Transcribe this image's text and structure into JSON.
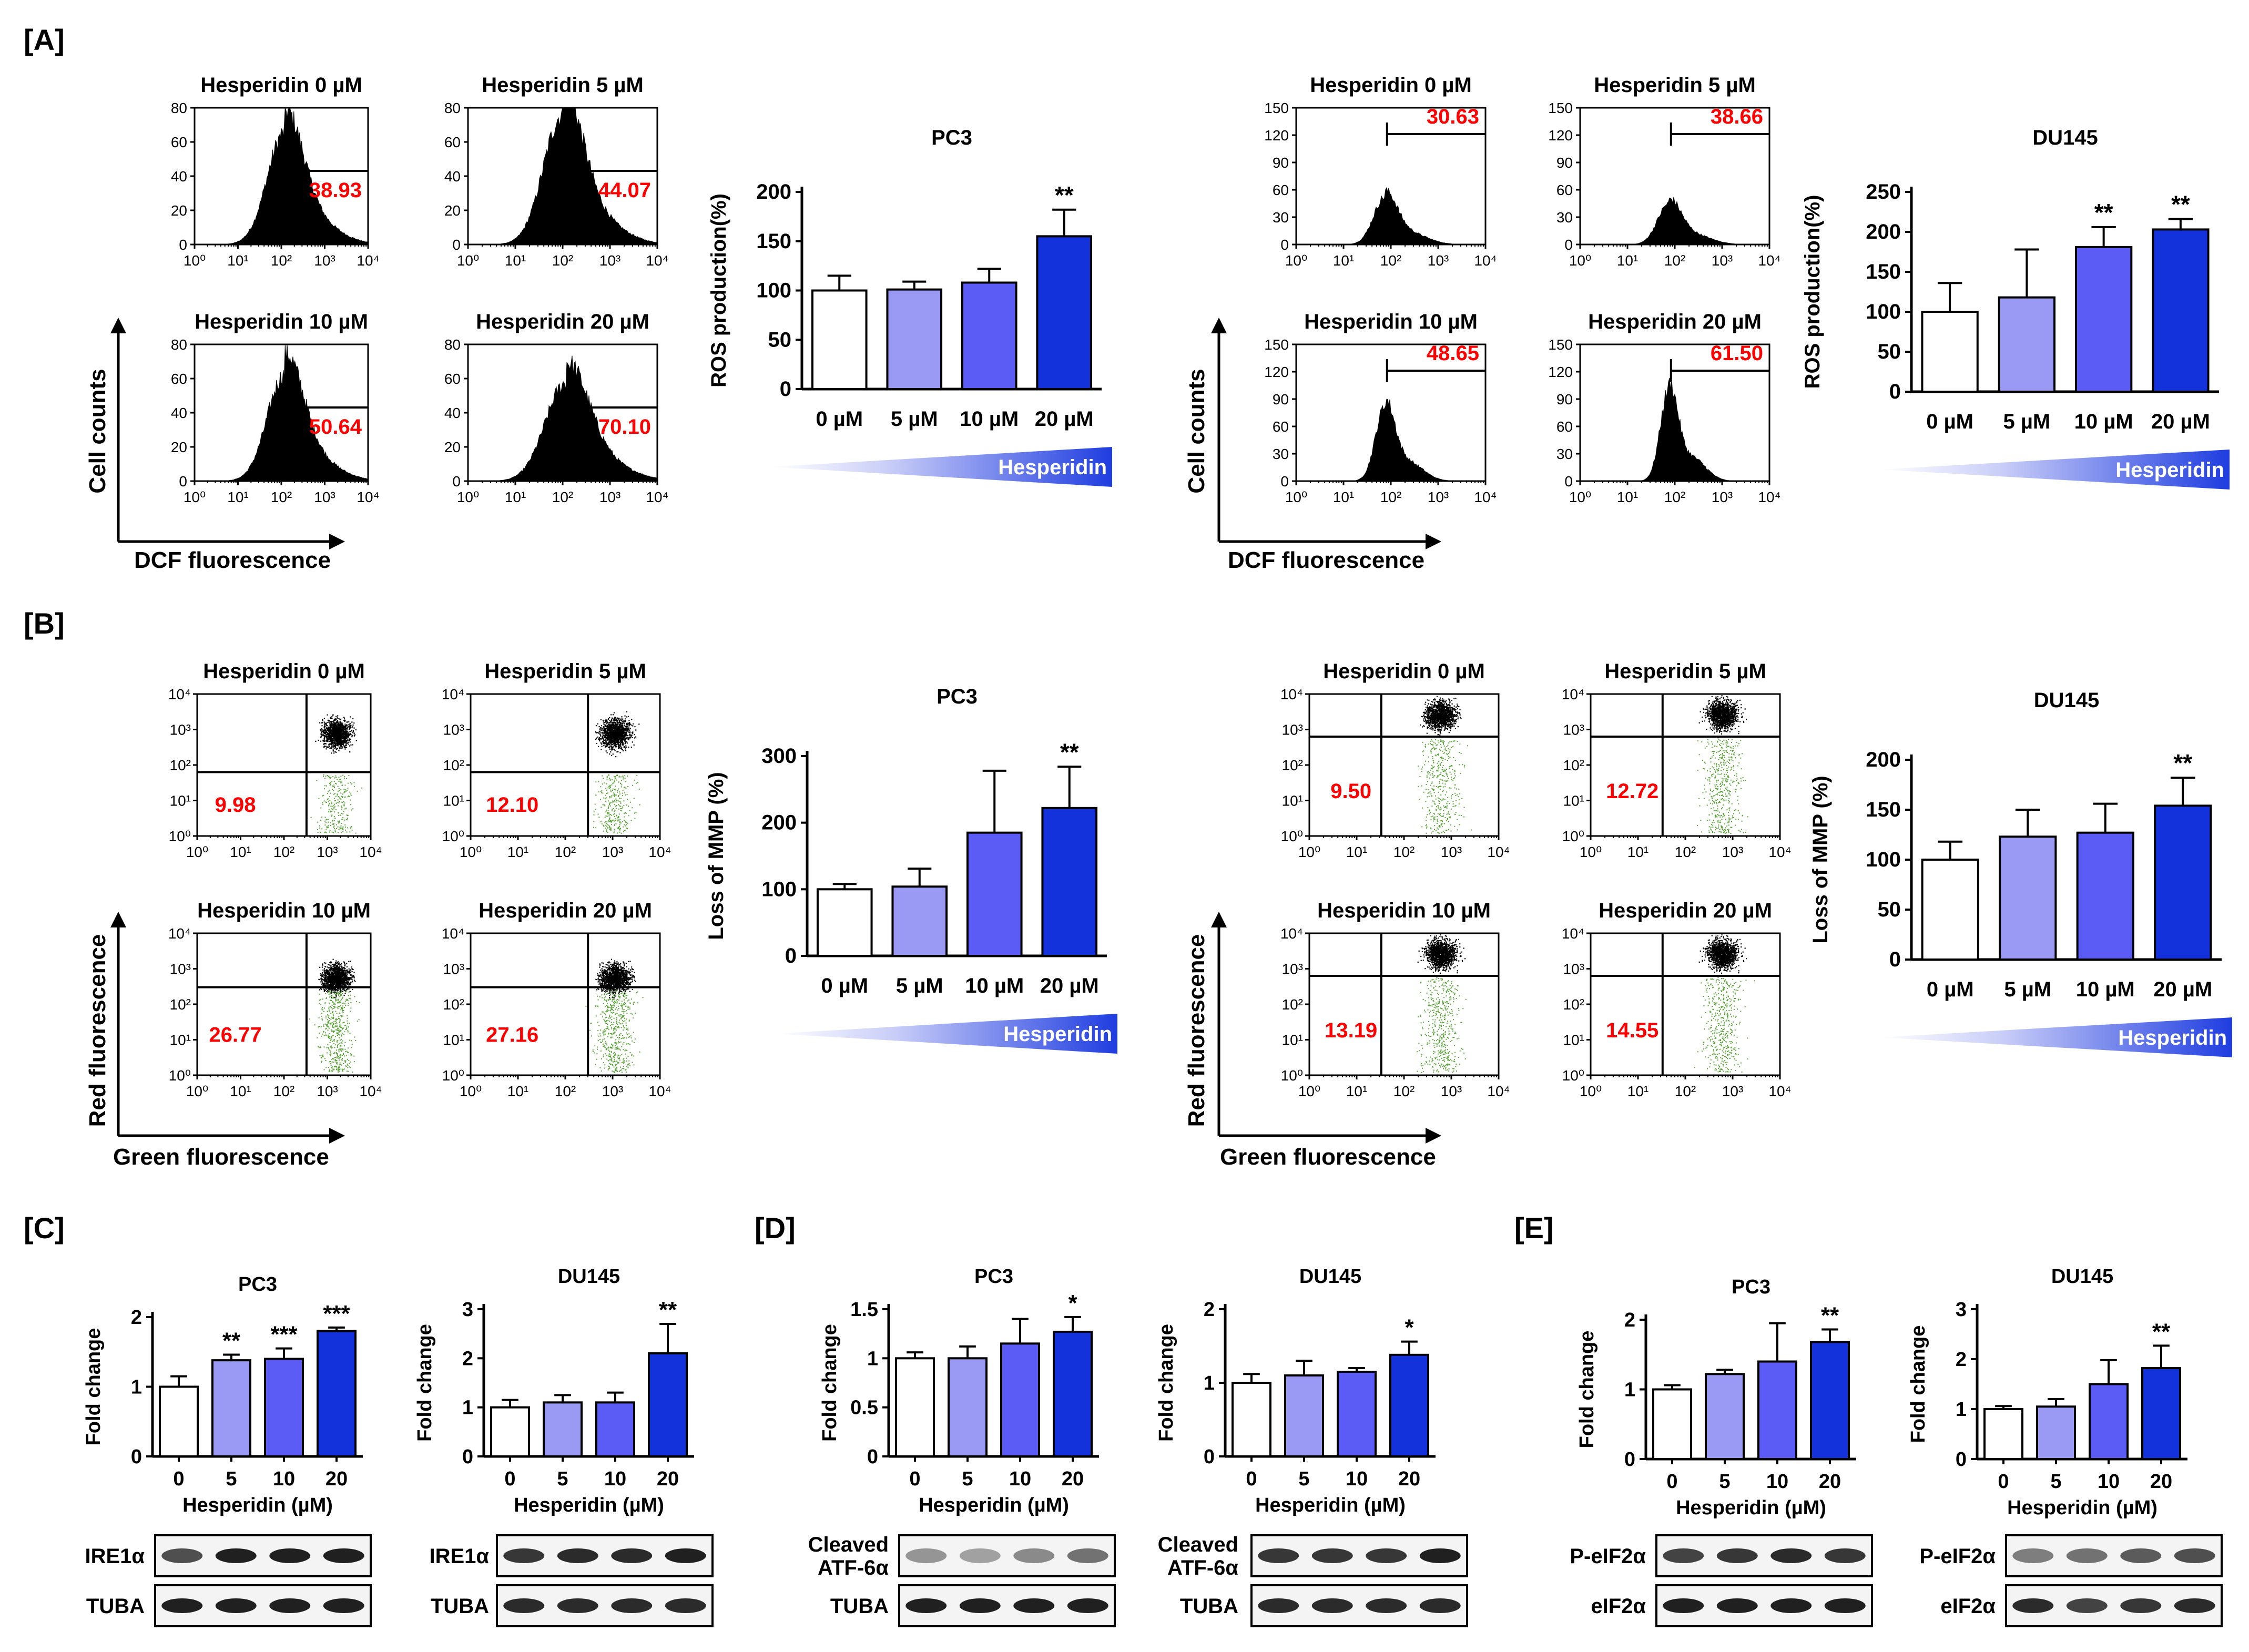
{
  "section_labels": [
    "[A]",
    "[B]",
    "[C]",
    "[D]",
    "[E]"
  ],
  "units": {
    "micromolar": "µM"
  },
  "flow_axis_labels": {
    "ros_y": "Cell counts",
    "ros_x": "DCF fluorescence",
    "mmp_y": "Red fluorescence",
    "mmp_x": "Green fluorescence"
  },
  "log_ticks": [
    "10⁰",
    "10¹",
    "10²",
    "10³",
    "10⁴"
  ],
  "colors": {
    "c0": "#ffffff",
    "c5": "#9a9af5",
    "c10": "#5b5bf5",
    "c20": "#1432dc",
    "red_text": "#ff0000",
    "green_dots": "#55a033",
    "wedge": "#1f3de0"
  },
  "chart_data": [
    {
      "id": "A_PC3_flow",
      "type": "histogram",
      "cell_line": "PC3",
      "y_ticks": [
        0,
        20,
        40,
        60,
        80
      ],
      "panels": [
        {
          "title": "Hesperidin 0 µM",
          "value": "38.93"
        },
        {
          "title": "Hesperidin 5 µM",
          "value": "44.07"
        },
        {
          "title": "Hesperidin 10 µM",
          "value": "50.64"
        },
        {
          "title": "Hesperidin 20 µM",
          "value": "70.10"
        }
      ]
    },
    {
      "id": "A_PC3_bar",
      "type": "bar",
      "title": "PC3",
      "ylabel": "ROS production(%)",
      "categories": [
        "0 µM",
        "5 µM",
        "10 µM",
        "20 µM"
      ],
      "values": [
        100,
        101,
        108,
        155
      ],
      "errors": [
        15,
        8,
        14,
        27
      ],
      "sig": [
        "",
        "",
        "",
        "**"
      ],
      "ylim": [
        0,
        200
      ],
      "yticks": [
        0,
        50,
        100,
        150,
        200
      ],
      "wedge_label": "Hesperidin"
    },
    {
      "id": "A_DU145_flow",
      "type": "histogram",
      "cell_line": "DU145",
      "y_ticks": [
        0,
        30,
        60,
        90,
        120,
        150
      ],
      "panels": [
        {
          "title": "Hesperidin 0 µM",
          "value": "30.63"
        },
        {
          "title": "Hesperidin 5 µM",
          "value": "38.66"
        },
        {
          "title": "Hesperidin 10 µM",
          "value": "48.65"
        },
        {
          "title": "Hesperidin 20 µM",
          "value": "61.50"
        }
      ]
    },
    {
      "id": "A_DU145_bar",
      "type": "bar",
      "title": "DU145",
      "ylabel": "ROS production(%)",
      "categories": [
        "0 µM",
        "5 µM",
        "10 µM",
        "20 µM"
      ],
      "values": [
        100,
        118,
        181,
        203
      ],
      "errors": [
        36,
        60,
        25,
        13
      ],
      "sig": [
        "",
        "",
        "**",
        "**"
      ],
      "ylim": [
        0,
        250
      ],
      "yticks": [
        0,
        50,
        100,
        150,
        200,
        250
      ],
      "wedge_label": "Hesperidin"
    },
    {
      "id": "B_PC3_flow",
      "type": "scatter",
      "cell_line": "PC3",
      "panels": [
        {
          "title": "Hesperidin 0 µM",
          "value": "9.98"
        },
        {
          "title": "Hesperidin 5 µM",
          "value": "12.10"
        },
        {
          "title": "Hesperidin 10 µM",
          "value": "26.77"
        },
        {
          "title": "Hesperidin 20 µM",
          "value": "27.16"
        }
      ]
    },
    {
      "id": "B_PC3_bar",
      "type": "bar",
      "title": "PC3",
      "ylabel": "Loss of MMP (%)",
      "categories": [
        "0 µM",
        "5 µM",
        "10 µM",
        "20 µM"
      ],
      "values": [
        100,
        104,
        185,
        222
      ],
      "errors": [
        8,
        27,
        93,
        62
      ],
      "sig": [
        "",
        "",
        "",
        "**"
      ],
      "ylim": [
        0,
        300
      ],
      "yticks": [
        0,
        100,
        200,
        300
      ],
      "wedge_label": "Hesperidin"
    },
    {
      "id": "B_DU145_flow",
      "type": "scatter",
      "cell_line": "DU145",
      "panels": [
        {
          "title": "Hesperidin 0 µM",
          "value": "9.50"
        },
        {
          "title": "Hesperidin 5 µM",
          "value": "12.72"
        },
        {
          "title": "Hesperidin 10 µM",
          "value": "13.19"
        },
        {
          "title": "Hesperidin 20 µM",
          "value": "14.55"
        }
      ]
    },
    {
      "id": "B_DU145_bar",
      "type": "bar",
      "title": "DU145",
      "ylabel": "Loss of MMP (%)",
      "categories": [
        "0 µM",
        "5 µM",
        "10 µM",
        "20 µM"
      ],
      "values": [
        100,
        123,
        127,
        154
      ],
      "errors": [
        18,
        27,
        29,
        28
      ],
      "sig": [
        "",
        "",
        "",
        "**"
      ],
      "ylim": [
        0,
        200
      ],
      "yticks": [
        0,
        50,
        100,
        150,
        200
      ],
      "wedge_label": "Hesperidin"
    },
    {
      "id": "C_PC3",
      "type": "bar",
      "title": "PC3",
      "ylabel": "Fold change",
      "xlabel": "Hesperidin (µM)",
      "categories": [
        "0",
        "5",
        "10",
        "20"
      ],
      "values": [
        1.0,
        1.38,
        1.4,
        1.8
      ],
      "errors": [
        0.15,
        0.08,
        0.15,
        0.05
      ],
      "sig": [
        "",
        "**",
        "***",
        "***"
      ],
      "ylim": [
        0,
        2
      ],
      "yticks": [
        "0",
        "1",
        "2"
      ],
      "ytick_values": [
        0,
        1,
        2
      ],
      "blots": [
        {
          "label": "IRE1α",
          "intensity": [
            0.75,
            0.95,
            0.95,
            0.95
          ]
        },
        {
          "label": "TUBA",
          "intensity": [
            0.95,
            0.95,
            0.95,
            0.95
          ]
        }
      ]
    },
    {
      "id": "C_DU145",
      "type": "bar",
      "title": "DU145",
      "ylabel": "Fold change",
      "xlabel": "Hesperidin (µM)",
      "categories": [
        "0",
        "5",
        "10",
        "20"
      ],
      "values": [
        1.0,
        1.1,
        1.1,
        2.1
      ],
      "errors": [
        0.15,
        0.15,
        0.2,
        0.6
      ],
      "sig": [
        "",
        "",
        "",
        "**"
      ],
      "ylim": [
        0,
        3
      ],
      "yticks": [
        "0",
        "1",
        "2",
        "3"
      ],
      "ytick_values": [
        0,
        1,
        2,
        3
      ],
      "blots": [
        {
          "label": "IRE1α",
          "intensity": [
            0.85,
            0.9,
            0.9,
            0.95
          ]
        },
        {
          "label": "TUBA",
          "intensity": [
            0.9,
            0.9,
            0.9,
            0.9
          ]
        }
      ]
    },
    {
      "id": "D_PC3",
      "type": "bar",
      "title": "PC3",
      "ylabel": "Fold change",
      "xlabel": "Hesperidin (µM)",
      "categories": [
        "0",
        "5",
        "10",
        "20"
      ],
      "values": [
        1.0,
        1.0,
        1.15,
        1.27
      ],
      "errors": [
        0.06,
        0.12,
        0.25,
        0.15
      ],
      "sig": [
        "",
        "",
        "",
        "*"
      ],
      "ylim": [
        0,
        1.5
      ],
      "yticks": [
        "0",
        "0.5",
        "1",
        "1.5"
      ],
      "ytick_values": [
        0,
        0.5,
        1,
        1.5
      ],
      "blots": [
        {
          "label": "Cleaved\nATF-6α",
          "intensity": [
            0.45,
            0.4,
            0.5,
            0.6
          ]
        },
        {
          "label": "TUBA",
          "intensity": [
            0.95,
            0.95,
            0.95,
            0.95
          ]
        }
      ]
    },
    {
      "id": "D_DU145",
      "type": "bar",
      "title": "DU145",
      "ylabel": "Fold change",
      "xlabel": "Hesperidin (µM)",
      "categories": [
        "0",
        "5",
        "10",
        "20"
      ],
      "values": [
        1.0,
        1.1,
        1.15,
        1.38
      ],
      "errors": [
        0.12,
        0.2,
        0.05,
        0.18
      ],
      "sig": [
        "",
        "",
        "",
        "*"
      ],
      "ylim": [
        0,
        2
      ],
      "yticks": [
        "0",
        "1",
        "2"
      ],
      "ytick_values": [
        0,
        1,
        2
      ],
      "blots": [
        {
          "label": "Cleaved\nATF-6α",
          "intensity": [
            0.85,
            0.85,
            0.85,
            0.95
          ]
        },
        {
          "label": "TUBA",
          "intensity": [
            0.9,
            0.9,
            0.9,
            0.9
          ]
        }
      ]
    },
    {
      "id": "E_PC3",
      "type": "bar",
      "title": "PC3",
      "ylabel": "Fold change",
      "xlabel": "Hesperidin (µM)",
      "categories": [
        "0",
        "5",
        "10",
        "20"
      ],
      "values": [
        1.0,
        1.22,
        1.4,
        1.68
      ],
      "errors": [
        0.06,
        0.06,
        0.55,
        0.18
      ],
      "sig": [
        "",
        "",
        "",
        "**"
      ],
      "ylim": [
        0,
        2
      ],
      "yticks": [
        "0",
        "1",
        "2"
      ],
      "ytick_values": [
        0,
        1,
        2
      ],
      "blots": [
        {
          "label": "P-eIF2α",
          "intensity": [
            0.8,
            0.85,
            0.9,
            0.85
          ]
        },
        {
          "label": "eIF2α",
          "intensity": [
            0.95,
            0.95,
            0.95,
            0.95
          ]
        }
      ]
    },
    {
      "id": "E_DU145",
      "type": "bar",
      "title": "DU145",
      "ylabel": "Fold change",
      "xlabel": "Hesperidin (µM)",
      "categories": [
        "0",
        "5",
        "10",
        "20"
      ],
      "values": [
        1.0,
        1.05,
        1.5,
        1.82
      ],
      "errors": [
        0.06,
        0.15,
        0.48,
        0.45
      ],
      "sig": [
        "",
        "",
        "",
        "**"
      ],
      "ylim": [
        0,
        3
      ],
      "yticks": [
        "0",
        "1",
        "2",
        "3"
      ],
      "ytick_values": [
        0,
        1,
        2,
        3
      ],
      "blots": [
        {
          "label": "P-eIF2α",
          "intensity": [
            0.55,
            0.6,
            0.7,
            0.75
          ]
        },
        {
          "label": "eIF2α",
          "intensity": [
            0.9,
            0.8,
            0.85,
            0.9
          ]
        }
      ]
    }
  ]
}
